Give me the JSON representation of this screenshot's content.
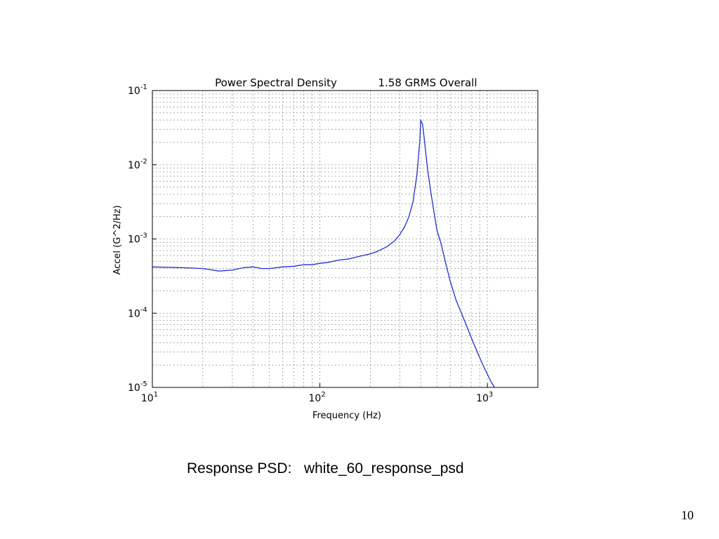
{
  "chart_data": {
    "type": "line",
    "title": "Power Spectral Density",
    "subtitle": "1.58 GRMS Overall",
    "xlabel": "Frequency (Hz)",
    "ylabel": "Accel (G^2/Hz)",
    "xscale": "log",
    "yscale": "log",
    "xlim": [
      10,
      2000
    ],
    "ylim": [
      1e-05,
      0.1
    ],
    "grid": true,
    "x_ticks": [
      {
        "base": "10",
        "exp": "1",
        "value": 10
      },
      {
        "base": "10",
        "exp": "2",
        "value": 100
      },
      {
        "base": "10",
        "exp": "3",
        "value": 1000
      }
    ],
    "y_ticks": [
      {
        "base": "10",
        "exp": "-1",
        "value": 0.1
      },
      {
        "base": "10",
        "exp": "-2",
        "value": 0.01
      },
      {
        "base": "10",
        "exp": "-3",
        "value": 0.001
      },
      {
        "base": "10",
        "exp": "-4",
        "value": 0.0001
      },
      {
        "base": "10",
        "exp": "-5",
        "value": 1e-05
      }
    ],
    "series": [
      {
        "color": "#1f2fd0",
        "x": [
          10,
          15,
          20,
          25,
          30,
          35,
          40,
          45,
          50,
          60,
          70,
          80,
          90,
          100,
          110,
          120,
          130,
          150,
          170,
          200,
          220,
          250,
          280,
          300,
          320,
          340,
          360,
          380,
          395,
          400,
          410,
          420,
          440,
          460,
          480,
          500,
          530,
          560,
          600,
          650,
          700,
          750,
          800,
          850,
          900,
          950,
          1000,
          1050,
          1100
        ],
        "y": [
          0.00042,
          0.00041,
          0.0004,
          0.00037,
          0.00038,
          0.00041,
          0.00042,
          0.0004,
          0.0004,
          0.00042,
          0.00043,
          0.00045,
          0.00045,
          0.00047,
          0.00048,
          0.0005,
          0.00052,
          0.00054,
          0.00058,
          0.00063,
          0.00068,
          0.00078,
          0.00095,
          0.00115,
          0.00145,
          0.002,
          0.0032,
          0.0075,
          0.021,
          0.04,
          0.035,
          0.022,
          0.0085,
          0.0042,
          0.0023,
          0.0013,
          0.00085,
          0.0005,
          0.00027,
          0.00015,
          0.0001,
          6.8e-05,
          4.7e-05,
          3.4e-05,
          2.5e-05,
          1.9e-05,
          1.5e-05,
          1.2e-05,
          1e-05
        ]
      }
    ]
  },
  "caption": {
    "label": "Response PSD:",
    "value": "white_60_response_psd"
  },
  "slide": {
    "number": "10"
  }
}
